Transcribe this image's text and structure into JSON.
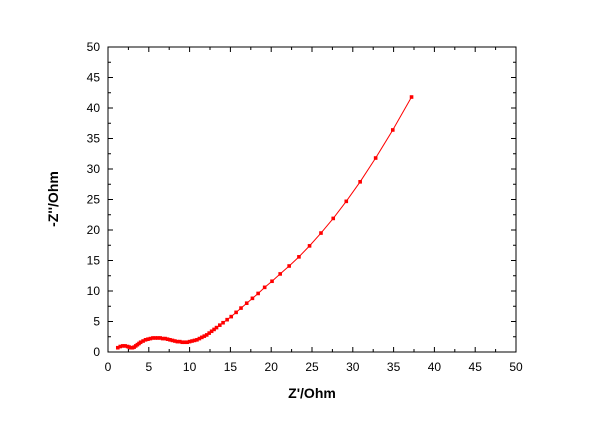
{
  "chart_data": {
    "type": "scatter",
    "title": "",
    "xlabel": "Z'/Ohm",
    "ylabel": "-Z''/Ohm",
    "xlim": [
      0,
      50
    ],
    "ylim": [
      0,
      50
    ],
    "xticks": [
      "0",
      "5",
      "10",
      "15",
      "20",
      "25",
      "30",
      "35",
      "40",
      "45",
      "50"
    ],
    "yticks": [
      "0",
      "5",
      "10",
      "15",
      "20",
      "25",
      "30",
      "35",
      "40",
      "45",
      "50"
    ],
    "grid": false,
    "legend": "none",
    "series": [
      {
        "color": "#ff0000",
        "marker": "square",
        "connected": true,
        "x": [
          1.2,
          1.5,
          1.8,
          2.1,
          2.4,
          2.6,
          2.8,
          3.0,
          3.2,
          3.4,
          3.6,
          3.8,
          4.0,
          4.3,
          4.6,
          4.9,
          5.2,
          5.5,
          5.8,
          6.1,
          6.4,
          6.7,
          7.0,
          7.3,
          7.6,
          7.9,
          8.2,
          8.5,
          8.8,
          9.1,
          9.4,
          9.7,
          10.0,
          10.3,
          10.6,
          10.9,
          11.2,
          11.5,
          11.8,
          12.1,
          12.4,
          12.7,
          13.0,
          13.3,
          13.7,
          14.1,
          14.6,
          15.1,
          15.7,
          16.3,
          17.0,
          17.7,
          18.4,
          19.2,
          20.1,
          21.1,
          22.2,
          23.4,
          24.7,
          26.1,
          27.6,
          29.2,
          30.9,
          32.8,
          34.9,
          37.2
        ],
        "y": [
          0.7,
          0.9,
          1.0,
          1.0,
          0.9,
          0.8,
          0.7,
          0.7,
          0.8,
          1.0,
          1.2,
          1.4,
          1.6,
          1.8,
          2.0,
          2.1,
          2.2,
          2.3,
          2.3,
          2.3,
          2.3,
          2.2,
          2.2,
          2.1,
          2.0,
          1.9,
          1.8,
          1.7,
          1.7,
          1.6,
          1.6,
          1.6,
          1.7,
          1.8,
          1.9,
          2.0,
          2.2,
          2.4,
          2.6,
          2.8,
          3.1,
          3.4,
          3.7,
          4.0,
          4.4,
          4.8,
          5.3,
          5.8,
          6.5,
          7.2,
          8.0,
          8.8,
          9.6,
          10.6,
          11.6,
          12.8,
          14.1,
          15.6,
          17.4,
          19.5,
          21.9,
          24.7,
          27.9,
          31.8,
          36.4,
          41.8
        ]
      }
    ]
  }
}
